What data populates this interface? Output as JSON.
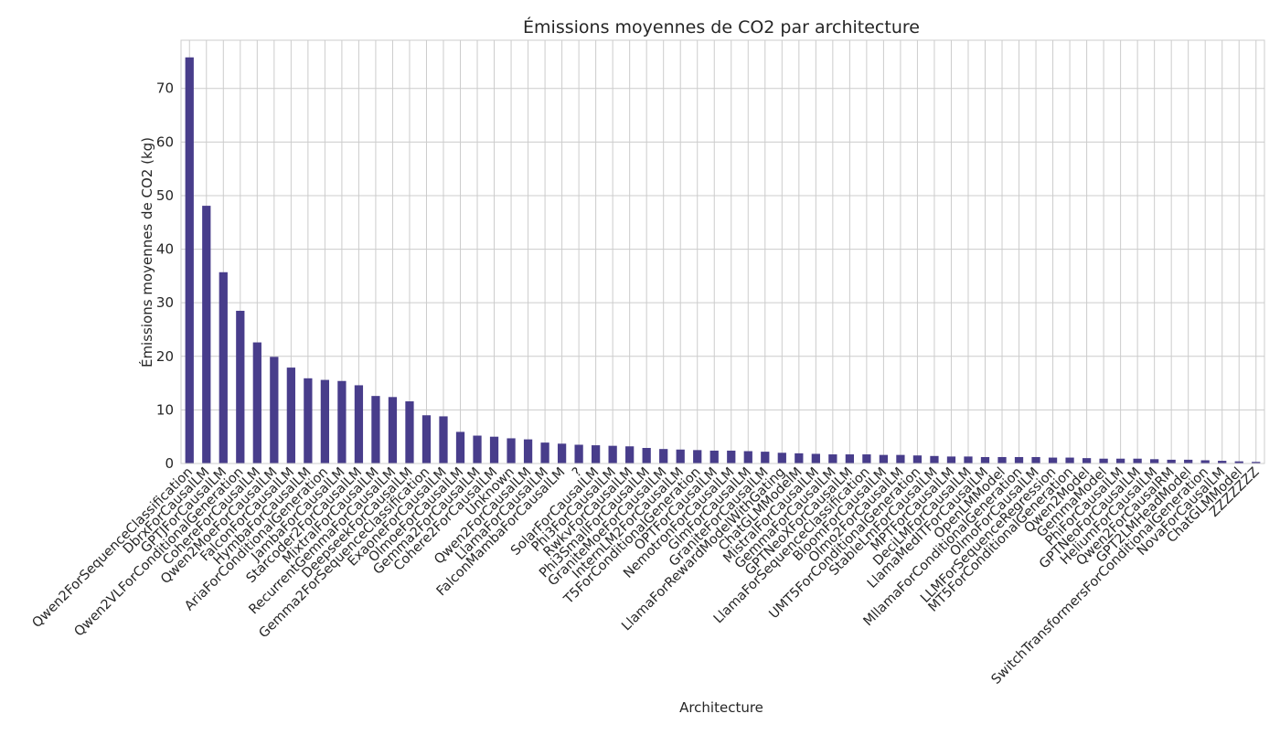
{
  "chart_data": {
    "type": "bar",
    "title": "Émissions moyennes de CO2 par architecture",
    "xlabel": "Architecture",
    "ylabel": "Émissions moyennes de CO2 (kg)",
    "ylim": [
      0,
      79
    ],
    "yticks": [
      0,
      10,
      20,
      30,
      40,
      50,
      60,
      70
    ],
    "grid": true,
    "bar_color": "#483d8b",
    "categories": [
      "Qwen2ForSequenceClassification",
      "DbrxForCausalLM",
      "GPTJForCausalLM",
      "Qwen2VLForConditionalGeneration",
      "CohereForCausalLM",
      "Qwen2MoeForCausalLM",
      "FalconForCausalLM",
      "HymbaForCausalLM",
      "AriaForConditionalGeneration",
      "JambaForCausalLM",
      "Starcoder2ForCausalLM",
      "MixtralForCausalLM",
      "RecurrentGemmaForCausalLM",
      "DeepseekForCausalLM",
      "Gemma2ForSequenceClassification",
      "ExaoneForCausalLM",
      "OlmoeForCausalLM",
      "Gemma2ForCausalLM",
      "Cohere2ForCausalLM",
      "Unknown",
      "Qwen2ForCausalLM",
      "LlamaForCausalLM",
      "FalconMambaForCausalLM",
      "?",
      "SolarForCausalLM",
      "Phi3ForCausalLM",
      "RwkvForCausalLM",
      "Phi3SmallForCausalLM",
      "GraniteMoeForCausalLM",
      "InternLM2ForCausalLM",
      "T5ForConditionalGeneration",
      "OPTForCausalLM",
      "NemotronForCausalLM",
      "GlmForCausalLM",
      "GraniteForCausalLM",
      "LlamaForRewardModelWithGating",
      "ChatGLMModelM",
      "MistralForCausalLM",
      "GemmaForCausalLM",
      "GPTNeoXForCausalLM",
      "LlamaForSequenceClassification",
      "BloomForCausalLM",
      "Olmo2ForCausalLM",
      "UMT5ForConditionalGeneration",
      "StableLmForCausalLM",
      "MPTForCausalLM",
      "DeciLMForCausalLM",
      "LlamaMedITForCausalLM",
      "OpenLMModel",
      "MllamaForConditionalGeneration",
      "OlmoForCausalLM",
      "LLMForSequenceRegression",
      "MT5ForConditionalGeneration",
      "Qwen2Model",
      "GemmaModel",
      "PhiForCausalLM",
      "GPTNeoForCausalLM",
      "HeliumForCausalLM",
      "Qwen2ForCausalRM",
      "GPT2LMHeadModel",
      "SwitchTransformersForConditionalGeneration",
      "NovaForCausalLM",
      "ChatGLMModel",
      "ZZZZZZZ"
    ],
    "values": [
      75.8,
      48.1,
      35.7,
      28.5,
      22.6,
      19.9,
      17.9,
      15.9,
      15.6,
      15.4,
      14.6,
      12.6,
      12.4,
      11.6,
      9.0,
      8.8,
      5.9,
      5.2,
      5.0,
      4.7,
      4.5,
      3.9,
      3.7,
      3.5,
      3.4,
      3.3,
      3.2,
      2.9,
      2.7,
      2.6,
      2.5,
      2.4,
      2.4,
      2.3,
      2.2,
      2.0,
      1.9,
      1.8,
      1.7,
      1.7,
      1.7,
      1.6,
      1.6,
      1.5,
      1.4,
      1.3,
      1.3,
      1.2,
      1.2,
      1.2,
      1.2,
      1.1,
      1.1,
      1.0,
      0.9,
      0.9,
      0.9,
      0.8,
      0.7,
      0.7,
      0.6,
      0.5,
      0.4,
      0.3
    ]
  }
}
